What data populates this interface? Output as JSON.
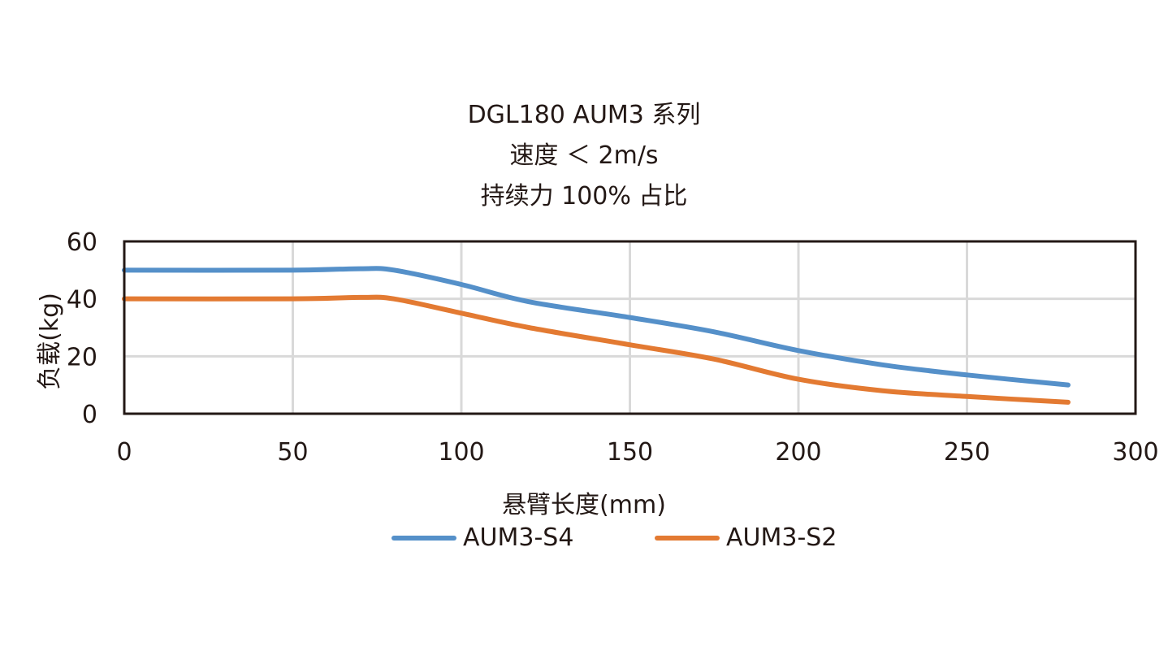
{
  "chart_data": {
    "type": "line",
    "title": [
      "DGL180 AUM3 系列",
      "速度 ＜ 2m/s",
      "持续力 100% 占比"
    ],
    "xlabel": "悬臂长度(mm)",
    "ylabel": "负载(kg)",
    "xlim": [
      0,
      300
    ],
    "ylim": [
      0,
      60
    ],
    "x_ticks": [
      0,
      50,
      100,
      150,
      200,
      250,
      300
    ],
    "y_ticks": [
      0,
      20,
      40,
      60
    ],
    "grid": true,
    "legend_position": "bottom",
    "x": [
      0,
      50,
      70,
      80,
      100,
      120,
      150,
      175,
      200,
      225,
      250,
      280
    ],
    "series": [
      {
        "name": "AUM3-S4",
        "color": "#5590c9",
        "values": [
          50,
          50,
          50.5,
          50,
          45,
          39,
          33.5,
          28.5,
          22,
          17,
          13.5,
          10
        ]
      },
      {
        "name": "AUM3-S2",
        "color": "#e37a32",
        "values": [
          40,
          40,
          40.5,
          40,
          35,
          30,
          24,
          19,
          12,
          8,
          6,
          4
        ]
      }
    ]
  },
  "labels": {
    "title_1": "DGL180 AUM3 系列",
    "title_2": "速度 ＜ 2m/s",
    "title_3": "持续力 100% 占比",
    "xlabel": "悬臂长度(mm)",
    "ylabel": "负载(kg)",
    "legend_1": "AUM3-S4",
    "legend_2": "AUM3-S2"
  }
}
